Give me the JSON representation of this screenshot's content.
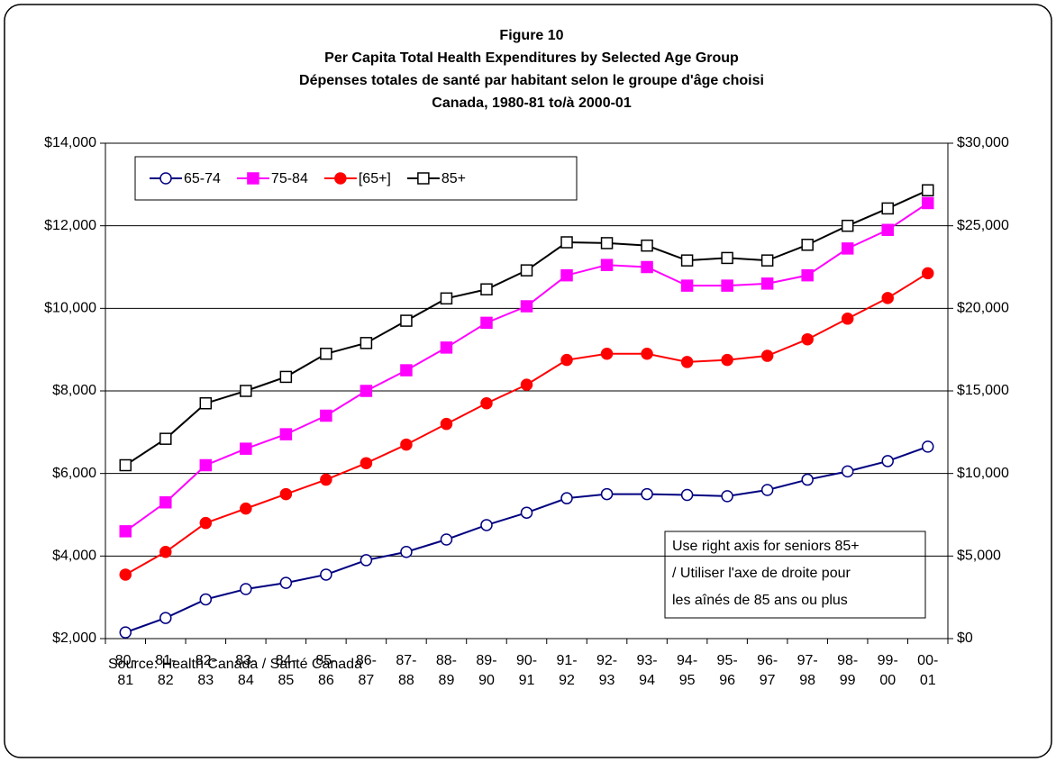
{
  "chart_data": {
    "type": "line",
    "title": [
      "Figure 10",
      "Per Capita Total Health Expenditures by Selected Age Group",
      "Dépenses totales de santé par habitant selon le groupe d'âge choisi",
      "Canada, 1980-81 to/à 2000-01"
    ],
    "categories": [
      "80-81",
      "81-82",
      "82-83",
      "83-84",
      "84-85",
      "85-86",
      "86-87",
      "87-88",
      "88-89",
      "89-90",
      "90-91",
      "91-92",
      "92-93",
      "93-94",
      "94-95",
      "95-96",
      "96-97",
      "97-98",
      "98-99",
      "99-00",
      "00-01"
    ],
    "series": [
      {
        "name": "65-74",
        "color": "#000080",
        "marker": "open-circle",
        "values": [
          2150,
          2500,
          2950,
          3200,
          3350,
          3550,
          3900,
          4100,
          4400,
          4750,
          5050,
          5400,
          5500,
          5500,
          5480,
          5450,
          5600,
          5850,
          6050,
          6300,
          6650
        ]
      },
      {
        "name": "75-84",
        "color": "#ff00ff",
        "marker": "square",
        "values": [
          4600,
          5300,
          6200,
          6600,
          6950,
          7400,
          8000,
          8500,
          9050,
          9650,
          10050,
          10800,
          11050,
          11000,
          10550,
          10550,
          10600,
          10800,
          11450,
          11900,
          12550
        ]
      },
      {
        "name": "[65+]",
        "color": "#ff0000",
        "marker": "circle",
        "values": [
          3550,
          4100,
          4800,
          5150,
          5500,
          5850,
          6250,
          6700,
          7200,
          7700,
          8150,
          8750,
          8900,
          8900,
          8700,
          8750,
          8850,
          9250,
          9750,
          10250,
          10850
        ]
      },
      {
        "name": "85+",
        "color": "#000000",
        "marker": "open-square",
        "axis": "y2",
        "values": [
          10500,
          12100,
          14250,
          15000,
          15850,
          17250,
          17900,
          19250,
          20600,
          21150,
          22300,
          24000,
          23950,
          23800,
          22900,
          23050,
          22900,
          23850,
          25000,
          26050,
          27150
        ]
      }
    ],
    "ylim": [
      2000,
      14000
    ],
    "yticks": [
      {
        "value": 2000,
        "label": "$2,000"
      },
      {
        "value": 4000,
        "label": "$4,000"
      },
      {
        "value": 6000,
        "label": "$6,000"
      },
      {
        "value": 8000,
        "label": "$8,000"
      },
      {
        "value": 10000,
        "label": "$10,000"
      },
      {
        "value": 12000,
        "label": "$12,000"
      },
      {
        "value": 14000,
        "label": "$14,000"
      }
    ],
    "y2lim": [
      0,
      30000
    ],
    "y2ticks": [
      {
        "value": 0,
        "label": "$0"
      },
      {
        "value": 5000,
        "label": "$5,000"
      },
      {
        "value": 10000,
        "label": "$10,000"
      },
      {
        "value": 15000,
        "label": "$15,000"
      },
      {
        "value": 20000,
        "label": "$20,000"
      },
      {
        "value": 25000,
        "label": "$25,000"
      },
      {
        "value": 30000,
        "label": "$30,000"
      }
    ],
    "grid": true,
    "legend": "top-left",
    "annotation": [
      "Use right axis for seniors 85+",
      "/ Utiliser l'axe de droite pour",
      "les aînés de 85 ans ou plus"
    ],
    "source": "Source: Health Canada / Santé Canada"
  }
}
